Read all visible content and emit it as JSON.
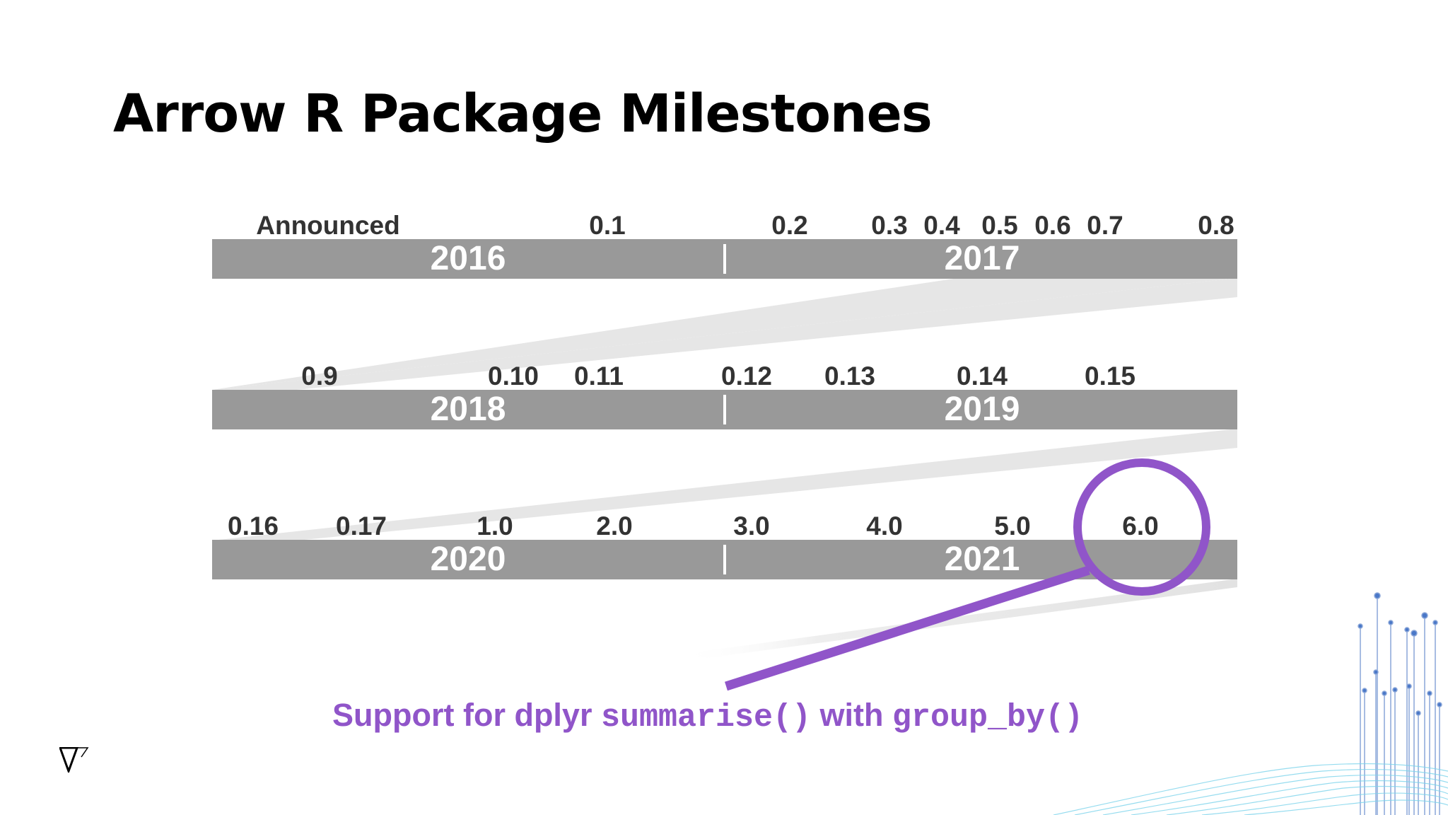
{
  "title": "Arrow R Package Milestones",
  "rows": [
    {
      "years": [
        "2016",
        "2017"
      ],
      "versions": [
        "Announced",
        "0.1",
        "0.2",
        "0.3",
        "0.4",
        "0.5",
        "0.6",
        "0.7",
        "0.8"
      ]
    },
    {
      "years": [
        "2018",
        "2019"
      ],
      "versions": [
        "0.9",
        "0.10",
        "0.11",
        "0.12",
        "0.13",
        "0.14",
        "0.15"
      ]
    },
    {
      "years": [
        "2020",
        "2021"
      ],
      "versions": [
        "0.16",
        "0.17",
        "1.0",
        "2.0",
        "3.0",
        "4.0",
        "5.0",
        "6.0"
      ]
    }
  ],
  "highlight": {
    "version": "6.0",
    "color": "#9055c9"
  },
  "caption": {
    "part1": "Support for dplyr ",
    "code1": "summarise()",
    "part2": " with ",
    "code2": "group_by()"
  },
  "colors": {
    "bar": "#999999",
    "band": "#e6e6e6",
    "version_text": "#333333"
  }
}
